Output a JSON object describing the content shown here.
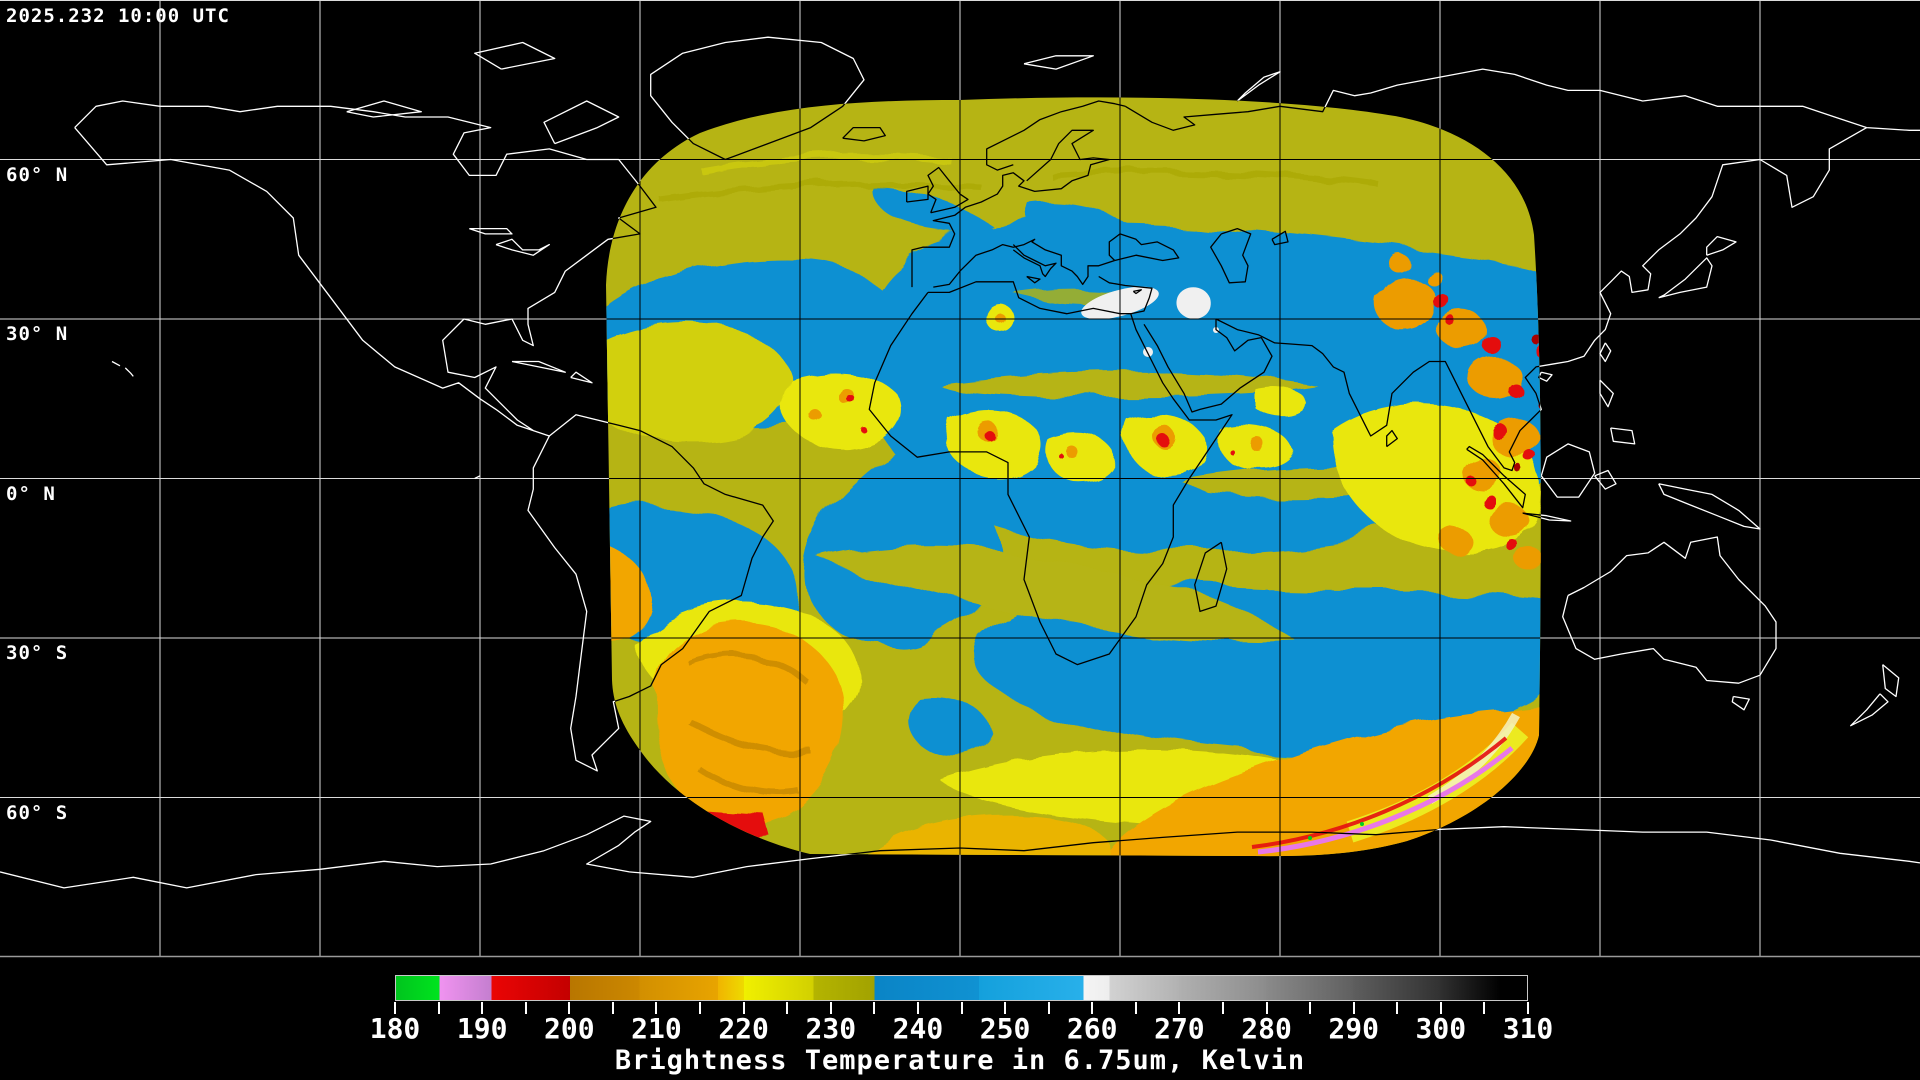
{
  "header": {
    "timestamp": "2025.232 10:00 UTC"
  },
  "map": {
    "latitude_labels": [
      {
        "label": "60° N",
        "lat": 60
      },
      {
        "label": "30° N",
        "lat": 30
      },
      {
        "label": "0° N",
        "lat": 0
      },
      {
        "label": "30° S",
        "lat": -30
      },
      {
        "label": "60° S",
        "lat": -60
      }
    ],
    "grid_longitude_step_deg": 30,
    "grid_latitude_step_deg": 30,
    "colors": {
      "background": "#000000",
      "gridline": "#dcdcdc",
      "gridline_in_swath": "#000000",
      "coastline": "#ffffff",
      "coastline_in_swath": "#000000",
      "map_border": "#9a9a9a"
    }
  },
  "swath": {
    "palette": {
      "olive": "#b6b414",
      "bright_yellow": "#e9e70a",
      "blue": "#1190d2",
      "orange": "#f2a602",
      "goldenrod": "#c98a00",
      "red": "#e41010",
      "dark_red": "#a80000",
      "white_cloud": "#f0f0f0",
      "violet": "#e878e8",
      "green": "#00cc22",
      "cream": "#f4f2c0"
    }
  },
  "colorbar": {
    "caption": "Brightness Temperature in 6.75um, Kelvin",
    "min": 180,
    "max": 310,
    "tick_step": 5,
    "label_step": 10,
    "tick_labels": [
      "180",
      "190",
      "200",
      "210",
      "220",
      "230",
      "240",
      "250",
      "260",
      "270",
      "280",
      "290",
      "300",
      "310"
    ],
    "segments": [
      {
        "from": 180,
        "to": 185,
        "c0": "#00c41e",
        "c1": "#00e41e"
      },
      {
        "from": 185,
        "to": 191,
        "c0": "#f093f0",
        "c1": "#c47ecf"
      },
      {
        "from": 191,
        "to": 200,
        "c0": "#ea0505",
        "c1": "#c40000"
      },
      {
        "from": 200,
        "to": 208,
        "c0": "#b87600",
        "c1": "#cc8800"
      },
      {
        "from": 208,
        "to": 217,
        "c0": "#d28f00",
        "c1": "#e8a400"
      },
      {
        "from": 217,
        "to": 220,
        "c0": "#f0b400",
        "c1": "#eeda00"
      },
      {
        "from": 220,
        "to": 228,
        "c0": "#f0f000",
        "c1": "#d2d000"
      },
      {
        "from": 228,
        "to": 235,
        "c0": "#b4b400",
        "c1": "#a2a200"
      },
      {
        "from": 235,
        "to": 247,
        "c0": "#0a84c6",
        "c1": "#1092d2"
      },
      {
        "from": 247,
        "to": 259,
        "c0": "#14a0dc",
        "c1": "#28b0ea"
      },
      {
        "from": 259,
        "to": 262,
        "c0": "#f4f4f4",
        "c1": "#eeeeee"
      },
      {
        "from": 262,
        "to": 270,
        "c0": "#d2d2d2",
        "c1": "#b2b2b2"
      },
      {
        "from": 270,
        "to": 280,
        "c0": "#b0b0b0",
        "c1": "#8c8c8c"
      },
      {
        "from": 280,
        "to": 290,
        "c0": "#8a8a8a",
        "c1": "#606060"
      },
      {
        "from": 290,
        "to": 300,
        "c0": "#5e5e5e",
        "c1": "#323232"
      },
      {
        "from": 300,
        "to": 307,
        "c0": "#303030",
        "c1": "#000000"
      },
      {
        "from": 307,
        "to": 310,
        "c0": "#000000",
        "c1": "#000000"
      }
    ]
  }
}
